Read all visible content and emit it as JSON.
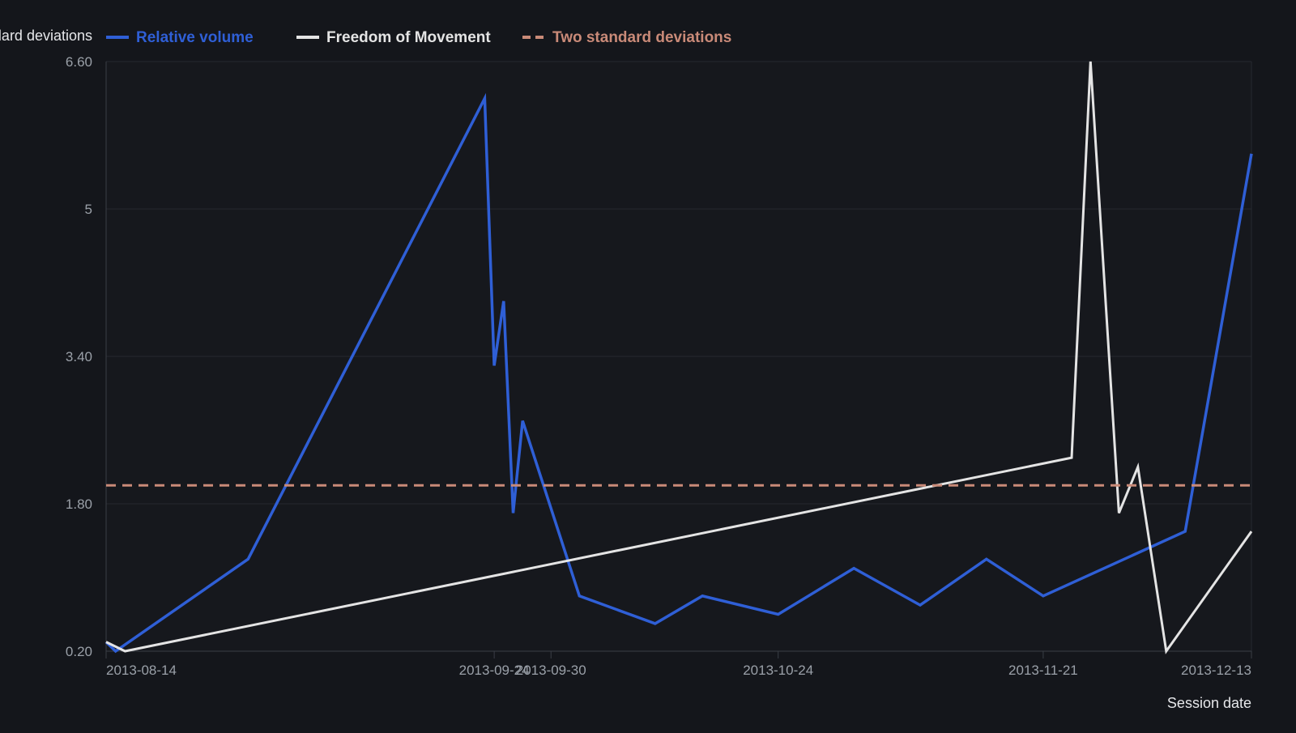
{
  "colors": {
    "background": "#14161b",
    "plot_background": "#16181d",
    "grid": "#262930",
    "axis": "#3a3e46",
    "tick_text": "#9aa0a8",
    "axis_title": "#e6e7ea"
  },
  "chart_data": {
    "type": "line",
    "title": "",
    "xlabel": "Session date",
    "ylabel": "Standard deviations",
    "ylim": [
      0.2,
      6.6
    ],
    "yticks": [
      {
        "value": 6.6,
        "label": "6.60"
      },
      {
        "value": 5.0,
        "label": "5"
      },
      {
        "value": 3.4,
        "label": "3.40"
      },
      {
        "value": 1.8,
        "label": "1.80"
      },
      {
        "value": 0.2,
        "label": "0.20"
      }
    ],
    "xlim": [
      "2013-08-14",
      "2013-12-13"
    ],
    "xticks": [
      {
        "date": "2013-08-14",
        "label": "2013-08-14",
        "anchor": "start"
      },
      {
        "date": "2013-09-24",
        "label": "2013-09-24",
        "anchor": "middle"
      },
      {
        "date": "2013-09-30",
        "label": "2013-09-30",
        "anchor": "middle"
      },
      {
        "date": "2013-10-24",
        "label": "2013-10-24",
        "anchor": "middle"
      },
      {
        "date": "2013-11-21",
        "label": "2013-11-21",
        "anchor": "middle"
      },
      {
        "date": "2013-12-13",
        "label": "2013-12-13",
        "anchor": "end"
      }
    ],
    "grid": true,
    "legend": {
      "placement": "top-left",
      "items": [
        {
          "name": "Relative volume",
          "color": "#2f5fd6",
          "style": "solid"
        },
        {
          "name": "Freedom of Movement",
          "color": "#e4e4e4",
          "style": "solid"
        },
        {
          "name": "Two standard deviations",
          "color": "#c98a78",
          "style": "dashed"
        }
      ]
    },
    "series": [
      {
        "name": "Relative volume",
        "color": "#2f5fd6",
        "style": "solid",
        "points": [
          {
            "x": "2013-08-14",
            "y": 0.3
          },
          {
            "x": "2013-08-15",
            "y": 0.2
          },
          {
            "x": "2013-08-29",
            "y": 1.2
          },
          {
            "x": "2013-09-23",
            "y": 6.2
          },
          {
            "x": "2013-09-24",
            "y": 3.3
          },
          {
            "x": "2013-09-25",
            "y": 4.0
          },
          {
            "x": "2013-09-26",
            "y": 1.7
          },
          {
            "x": "2013-09-27",
            "y": 2.7
          },
          {
            "x": "2013-10-03",
            "y": 0.8
          },
          {
            "x": "2013-10-11",
            "y": 0.5
          },
          {
            "x": "2013-10-16",
            "y": 0.8
          },
          {
            "x": "2013-10-24",
            "y": 0.6
          },
          {
            "x": "2013-11-01",
            "y": 1.1
          },
          {
            "x": "2013-11-08",
            "y": 0.7
          },
          {
            "x": "2013-11-15",
            "y": 1.2
          },
          {
            "x": "2013-11-21",
            "y": 0.8
          },
          {
            "x": "2013-12-06",
            "y": 1.5
          },
          {
            "x": "2013-12-13",
            "y": 5.6
          }
        ]
      },
      {
        "name": "Freedom of Movement",
        "color": "#e4e4e4",
        "style": "solid",
        "points": [
          {
            "x": "2013-08-14",
            "y": 0.3
          },
          {
            "x": "2013-08-16",
            "y": 0.2
          },
          {
            "x": "2013-11-24",
            "y": 2.3
          },
          {
            "x": "2013-11-26",
            "y": 6.6
          },
          {
            "x": "2013-11-29",
            "y": 1.7
          },
          {
            "x": "2013-12-01",
            "y": 2.2
          },
          {
            "x": "2013-12-04",
            "y": 0.2
          },
          {
            "x": "2013-12-13",
            "y": 1.5
          }
        ]
      },
      {
        "name": "Two standard deviations",
        "color": "#c98a78",
        "style": "dashed",
        "points": [
          {
            "x": "2013-08-14",
            "y": 2.0
          },
          {
            "x": "2013-12-13",
            "y": 2.0
          }
        ]
      }
    ]
  }
}
